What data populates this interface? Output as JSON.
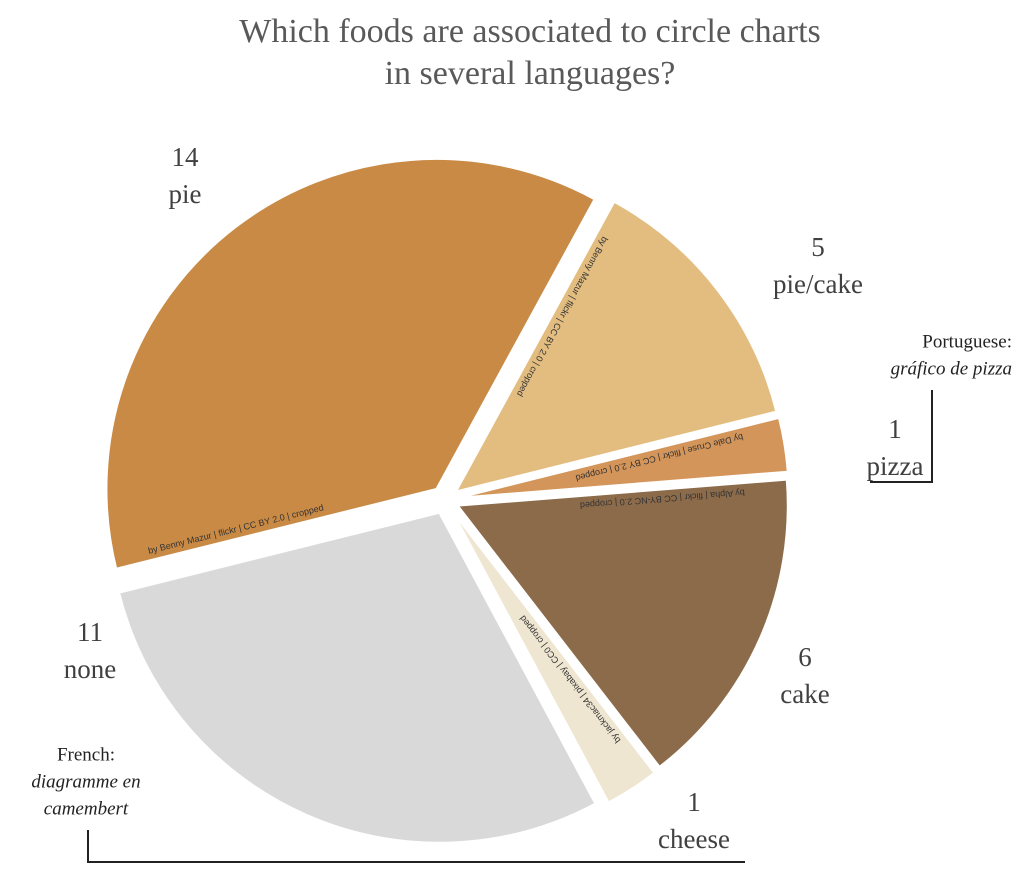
{
  "chart_data": {
    "type": "pie",
    "title": [
      "Which foods are associated to circle charts",
      "in several languages?"
    ],
    "categories": [
      "pie",
      "pie/cake",
      "pizza",
      "cake",
      "cheese",
      "none"
    ],
    "values": [
      14,
      5,
      1,
      6,
      1,
      11
    ],
    "colors": [
      "#c98a45",
      "#e3bd80",
      "#d4955a",
      "#8c6b4a",
      "#efe6d2",
      "#d9d9d9"
    ],
    "credits": [
      "by Benny Mazur | flickr | CC BY 2.0 | cropped",
      "by Benny Mazur | flickr | CC BY 2.0 | cropped",
      "by Dale Cruse | flickr | CC BY 2.0 | cropped",
      "by Alpha | flickr | CC BY-NC 2.0 | cropped",
      "by jackmac34 | pixabay | CC0 | cropped",
      null
    ],
    "annotations": [
      {
        "heading": "Portuguese:",
        "lines": [
          "gráfico de pizza"
        ]
      },
      {
        "heading": "French:",
        "lines": [
          "diagramme en",
          "camembert"
        ]
      }
    ]
  }
}
